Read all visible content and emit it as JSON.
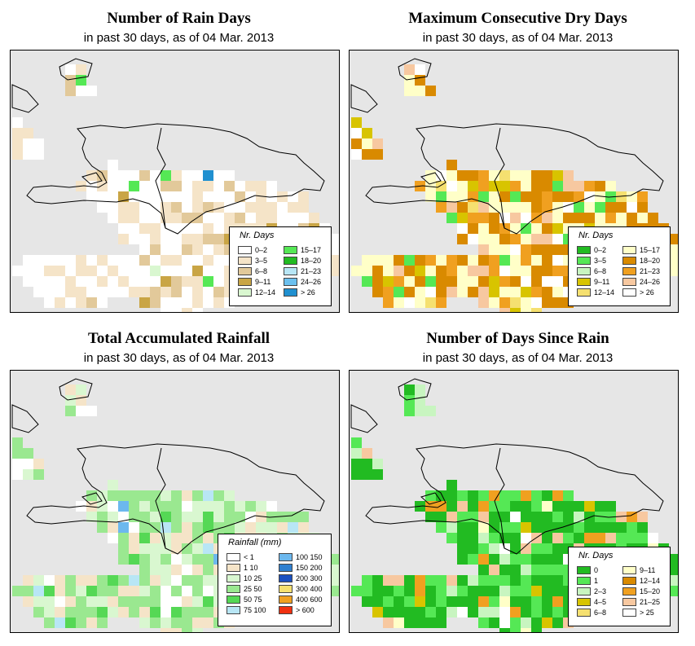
{
  "panels": [
    {
      "title": "Number of Rain Days",
      "subtitle": "in past 30 days, as of  04 Mar. 2013",
      "legend_title": "Nr. Days",
      "legend": [
        {
          "label": "0–2",
          "color": "#ffffff"
        },
        {
          "label": "3–5",
          "color": "#f5e4c8"
        },
        {
          "label": "6–8",
          "color": "#e2c99a"
        },
        {
          "label": "9–11",
          "color": "#c9a545"
        },
        {
          "label": "12–14",
          "color": "#d9f7d0"
        },
        {
          "label": "15–17",
          "color": "#55e855"
        },
        {
          "label": "18–20",
          "color": "#22bb22"
        },
        {
          "label": "21–23",
          "color": "#b8e6f5"
        },
        {
          "label": "24–26",
          "color": "#6cc0ee"
        },
        {
          "label": "> 26",
          "color": "#2090d0"
        }
      ]
    },
    {
      "title": "Maximum Consecutive Dry Days",
      "subtitle": "in past 30 days, as of  04 Mar. 2013",
      "legend_title": "Nr. Days",
      "legend": [
        {
          "label": "0–2",
          "color": "#22bb22"
        },
        {
          "label": "3–5",
          "color": "#55e855"
        },
        {
          "label": "6–8",
          "color": "#c8f5c0"
        },
        {
          "label": "9–11",
          "color": "#d8c400"
        },
        {
          "label": "12–14",
          "color": "#f5e070"
        },
        {
          "label": "15–17",
          "color": "#ffffc8"
        },
        {
          "label": "18–20",
          "color": "#d98a00"
        },
        {
          "label": "21–23",
          "color": "#f0a020"
        },
        {
          "label": "24–26",
          "color": "#f7c8a0"
        },
        {
          "label": "> 26",
          "color": "#ffffff"
        }
      ]
    },
    {
      "title": "Total Accumulated Rainfall",
      "subtitle": "in past 30 days, as of  04 Mar. 2013",
      "legend_title": "Rainfall (mm)",
      "legend": [
        {
          "label": "< 1",
          "color": "#ffffff"
        },
        {
          "label": "1   10",
          "color": "#f5e4c8"
        },
        {
          "label": "10   25",
          "color": "#d9f7d0"
        },
        {
          "label": "25   50",
          "color": "#9ae890"
        },
        {
          "label": "50   75",
          "color": "#55d855"
        },
        {
          "label": "75  100",
          "color": "#b8e6f5"
        },
        {
          "label": "100  150",
          "color": "#6cb8ee"
        },
        {
          "label": "150  200",
          "color": "#2f80d0"
        },
        {
          "label": "200  300",
          "color": "#1a50c0"
        },
        {
          "label": "300  400",
          "color": "#f5e070"
        },
        {
          "label": "400  600",
          "color": "#f0a020"
        },
        {
          "label": "> 600",
          "color": "#f03010"
        }
      ]
    },
    {
      "title": "Number of Days Since Rain",
      "subtitle": "in past 30 days, as of  04 Mar. 2013",
      "legend_title": "Nr. Days",
      "legend": [
        {
          "label": "0",
          "color": "#22bb22"
        },
        {
          "label": "1",
          "color": "#55e855"
        },
        {
          "label": "2–3",
          "color": "#c8f5c0"
        },
        {
          "label": "4–5",
          "color": "#d8c400"
        },
        {
          "label": "6–8",
          "color": "#f5e070"
        },
        {
          "label": "9–11",
          "color": "#ffffc8"
        },
        {
          "label": "12–14",
          "color": "#d98a00"
        },
        {
          "label": "15–20",
          "color": "#f0a020"
        },
        {
          "label": "21–25",
          "color": "#f7c8a0"
        },
        {
          "label": "> 25",
          "color": "#ffffff"
        }
      ]
    }
  ]
}
